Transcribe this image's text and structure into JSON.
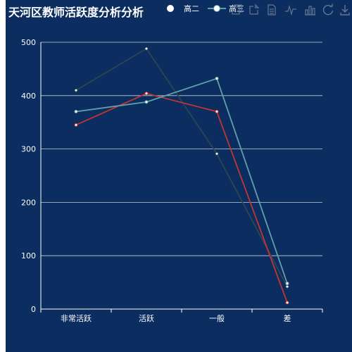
{
  "title": "天河区教师活跃度分析分析",
  "legend": [
    {
      "name": "高二",
      "color": "#c23531"
    },
    {
      "name": "高三",
      "color": "#61a0a8"
    }
  ],
  "toolbox": [
    "restore-icon",
    "data-view-icon",
    "save-image-icon",
    "line-chart-icon",
    "bar-chart-icon",
    "refresh-icon",
    "download-icon"
  ],
  "chart_data": {
    "type": "line",
    "title": "天河区教师活跃度分析分析",
    "categories": [
      "非常活跃",
      "活跃",
      "一般",
      "差"
    ],
    "ylim": [
      0,
      500
    ],
    "yticks": [
      0,
      100,
      200,
      300,
      400,
      500
    ],
    "grid": true,
    "legend_position": "top",
    "series": [
      {
        "name": "",
        "color": "#2f4554",
        "values": [
          410,
          488,
          291,
          42
        ]
      },
      {
        "name": "高二",
        "color": "#c23531",
        "values": [
          345,
          404,
          370,
          12
        ]
      },
      {
        "name": "高三",
        "color": "#61a0a8",
        "values": [
          370,
          388,
          432,
          48
        ]
      }
    ]
  }
}
